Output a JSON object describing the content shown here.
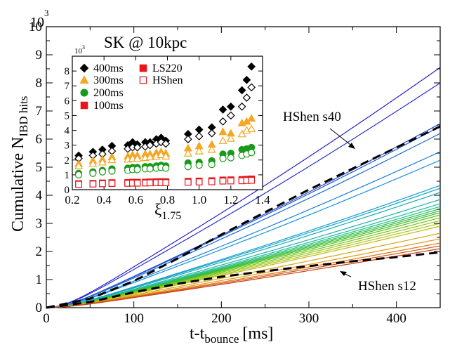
{
  "chart_data": [
    {
      "type": "line",
      "title": "SK @ 10kpc",
      "xlabel": "t-t",
      "xlabel_sub": "bounce",
      "xlabel_unit": "[ms]",
      "ylabel": "Cumulative N",
      "ylabel_sub": "IBD hits",
      "y_multiplier": "10^3",
      "y_multiplier_base": "10",
      "y_multiplier_exp": "3",
      "xlim": [
        0,
        450
      ],
      "ylim": [
        0,
        10
      ],
      "xticks": [
        "0",
        "100",
        "200",
        "300",
        "400"
      ],
      "yticks": [
        "0",
        "1",
        "2",
        "3",
        "4",
        "5",
        "6",
        "7",
        "8",
        "9",
        "10"
      ],
      "grid": false,
      "annotations": [
        {
          "text": "HShen s40",
          "points_to": "dashed upper curve near t=350 ms"
        },
        {
          "text": "HShen s12",
          "points_to": "dashed lower curve near t=340 ms"
        }
      ],
      "color_scale": "blue (highest) to red (lowest) through cyan, green, yellow, orange",
      "series_endpoints_at_450ms": [
        8.55,
        8.0,
        6.55,
        6.45,
        6.2,
        5.55,
        5.25,
        4.35,
        4.25,
        4.1,
        3.85,
        3.7,
        3.6,
        3.52,
        3.45,
        3.38,
        3.3,
        3.2,
        3.1,
        3.0,
        2.9,
        2.65,
        2.45,
        2.3,
        2.2,
        2.1
      ],
      "dashed_series": [
        {
          "name": "HShen s40",
          "x": [
            0,
            50,
            100,
            150,
            200,
            250,
            300,
            350,
            400,
            450
          ],
          "y": [
            0,
            0.32,
            0.95,
            1.75,
            2.6,
            3.4,
            4.2,
            4.95,
            5.7,
            6.45
          ]
        },
        {
          "name": "HShen s12",
          "x": [
            0,
            50,
            100,
            150,
            200,
            250,
            300,
            350,
            400,
            450
          ],
          "y": [
            0,
            0.2,
            0.55,
            0.85,
            1.1,
            1.3,
            1.48,
            1.65,
            1.8,
            1.97
          ]
        }
      ]
    },
    {
      "type": "scatter",
      "xlabel": "ξ",
      "xlabel_sub": "1.75",
      "y_multiplier": "10^3",
      "y_multiplier_base": "10",
      "y_multiplier_exp": "3",
      "xlim": [
        0.2,
        1.4
      ],
      "ylim": [
        0,
        9
      ],
      "xticks": [
        "0.2",
        "0.4",
        "0.6",
        "0.8",
        "1.0",
        "1.2",
        "1.4"
      ],
      "yticks": [
        "0",
        "1",
        "2",
        "3",
        "4",
        "5",
        "6",
        "7",
        "8"
      ],
      "legend": [
        {
          "label": "400ms",
          "marker": "diamond",
          "color": "#000000"
        },
        {
          "label": "300ms",
          "marker": "triangle",
          "color": "#f5a623"
        },
        {
          "label": "200ms",
          "marker": "circle",
          "color": "#1a9a1a"
        },
        {
          "label": "100ms",
          "marker": "square",
          "color": "#e8161b"
        },
        {
          "label": "LS220",
          "marker": "square",
          "color": "#e8161b",
          "filled": true
        },
        {
          "label": "HShen",
          "marker": "square",
          "color": "#e8161b",
          "filled": false
        }
      ],
      "legend_position": "top-left",
      "xi": [
        0.24,
        0.33,
        0.39,
        0.45,
        0.55,
        0.58,
        0.61,
        0.66,
        0.69,
        0.73,
        0.76,
        0.79,
        0.93,
        1.0,
        1.08,
        1.15,
        1.2,
        1.27,
        1.3,
        1.33
      ],
      "series": [
        {
          "name": "400ms LS220",
          "values": [
            2.3,
            2.55,
            2.7,
            2.95,
            3.0,
            3.2,
            3.05,
            3.2,
            3.2,
            3.4,
            3.5,
            3.3,
            3.75,
            4.05,
            4.2,
            5.4,
            5.6,
            6.7,
            7.4,
            8.3
          ]
        },
        {
          "name": "400ms HShen",
          "values": [
            2.1,
            2.3,
            2.4,
            2.6,
            2.75,
            2.85,
            2.85,
            2.9,
            3.0,
            3.1,
            3.2,
            3.1,
            3.4,
            3.6,
            3.8,
            4.6,
            5.0,
            5.6,
            6.2,
            6.9
          ]
        },
        {
          "name": "300ms LS220",
          "values": [
            1.75,
            1.95,
            2.05,
            2.2,
            2.25,
            2.35,
            2.3,
            2.4,
            2.4,
            2.5,
            2.55,
            2.45,
            2.8,
            2.95,
            3.05,
            3.9,
            3.8,
            4.5,
            4.6,
            4.8
          ]
        },
        {
          "name": "300ms HShen",
          "values": [
            1.6,
            1.75,
            1.85,
            2.0,
            2.05,
            2.1,
            2.1,
            2.15,
            2.2,
            2.25,
            2.35,
            2.25,
            2.45,
            2.6,
            2.7,
            3.3,
            3.45,
            3.75,
            4.0,
            4.1
          ]
        },
        {
          "name": "200ms LS220",
          "values": [
            1.1,
            1.2,
            1.3,
            1.4,
            1.45,
            1.5,
            1.5,
            1.55,
            1.55,
            1.6,
            1.65,
            1.6,
            1.8,
            1.85,
            1.95,
            2.4,
            2.45,
            2.7,
            2.75,
            2.85
          ]
        },
        {
          "name": "200ms HShen",
          "values": [
            1.0,
            1.1,
            1.2,
            1.25,
            1.3,
            1.35,
            1.35,
            1.4,
            1.4,
            1.45,
            1.5,
            1.45,
            1.55,
            1.65,
            1.7,
            2.1,
            2.15,
            2.3,
            2.4,
            2.5
          ]
        },
        {
          "name": "100ms LS220",
          "values": [
            0.4,
            0.42,
            0.45,
            0.47,
            0.48,
            0.5,
            0.5,
            0.5,
            0.52,
            0.53,
            0.54,
            0.53,
            0.56,
            0.58,
            0.6,
            0.65,
            0.66,
            0.68,
            0.7,
            0.72
          ]
        },
        {
          "name": "100ms HShen",
          "values": [
            0.36,
            0.38,
            0.4,
            0.42,
            0.43,
            0.44,
            0.44,
            0.45,
            0.46,
            0.47,
            0.48,
            0.47,
            0.5,
            0.52,
            0.53,
            0.58,
            0.59,
            0.6,
            0.62,
            0.63
          ]
        }
      ]
    }
  ]
}
